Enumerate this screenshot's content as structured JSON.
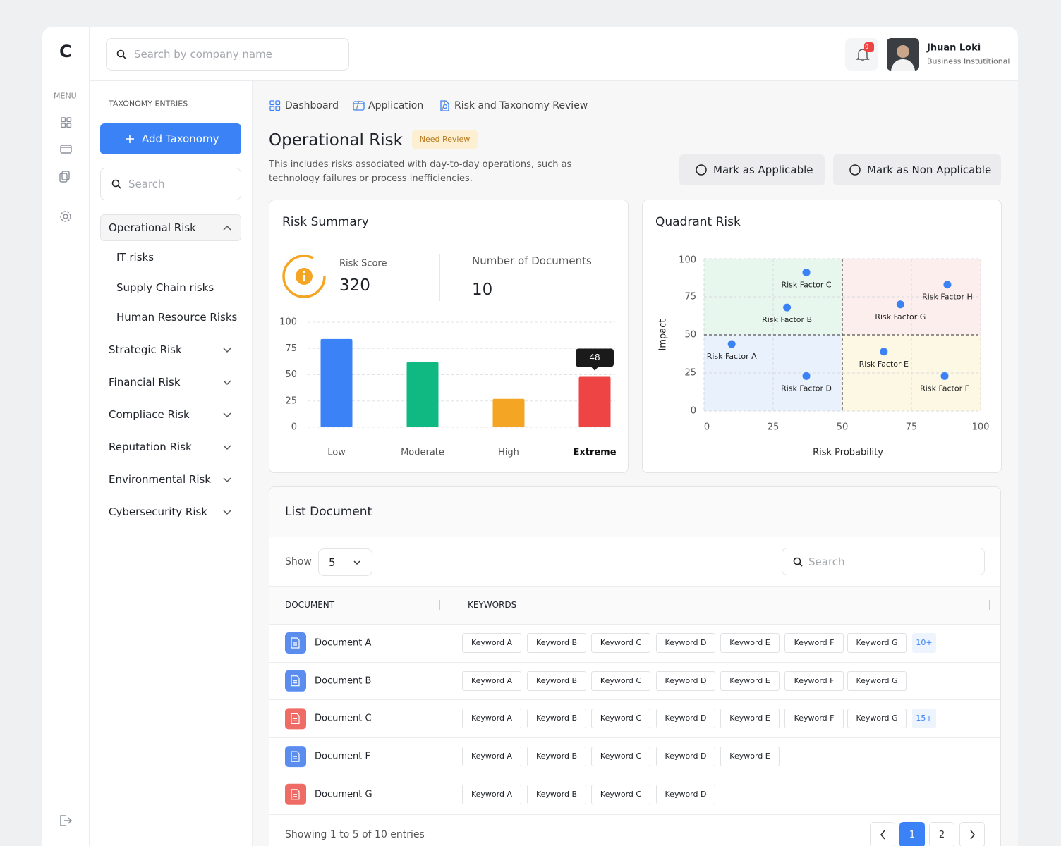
{
  "app": {
    "logo": "C",
    "menu_label": "MENU"
  },
  "topbar": {
    "search_placeholder": "Search by company name",
    "notification_count": "9+",
    "user_name": "Jhuan Loki",
    "user_role": "Business Instutitional"
  },
  "taxonomy": {
    "label": "TAXONOMY ENTRIES",
    "add_button": "Add Taxonomy",
    "search_placeholder": "Search",
    "items": [
      {
        "label": "Operational Risk",
        "children": [
          "IT risks",
          "Supply Chain risks",
          "Human Resource Risks"
        ]
      },
      {
        "label": "Strategic Risk"
      },
      {
        "label": "Financial Risk"
      },
      {
        "label": "Compliace Risk"
      },
      {
        "label": "Reputation Risk"
      },
      {
        "label": "Environmental Risk"
      },
      {
        "label": "Cybersecurity Risk"
      }
    ]
  },
  "breadcrumb": [
    "Dashboard",
    "Application",
    "Risk and Taxonomy Review"
  ],
  "header": {
    "title": "Operational Risk",
    "badge": "Need Review",
    "description": "This includes risks associated with day-to-day operations, such as technology failures or process inefficiencies.",
    "actions": [
      "Mark as Applicable",
      "Mark as Non Applicable"
    ]
  },
  "risk_summary": {
    "score_label": "Risk Score",
    "score": "320",
    "documents_label": "Number of Documents",
    "documents": "10"
  },
  "chart_data": [
    {
      "type": "bar",
      "title": "Risk Summary",
      "categories": [
        "Low",
        "Moderate",
        "High",
        "Extreme"
      ],
      "values": [
        84,
        62,
        27,
        48
      ],
      "colors": [
        "#3b82f6",
        "#10b981",
        "#f5a524",
        "#ef4444"
      ],
      "ylim": [
        0,
        100
      ],
      "yticks": [
        0,
        25,
        50,
        75,
        100
      ],
      "grid": true,
      "tooltip_index": 3
    },
    {
      "type": "scatter",
      "title": "Quadrant Risk",
      "xlabel": "Risk Probability",
      "ylabel": "Impact",
      "labels": [
        "Risk Factor A",
        "Risk Factor B",
        "Risk Factor C",
        "Risk Factor D",
        "Risk Factor E",
        "Risk Factor F",
        "Risk Factor G",
        "Risk Factor H"
      ],
      "x": [
        10,
        30,
        37,
        37,
        65,
        87,
        71,
        88
      ],
      "values": [
        44,
        68,
        91,
        23,
        39,
        23,
        70,
        83
      ],
      "color": "#3b82f6",
      "xlim": [
        0,
        100
      ],
      "ylim": [
        0,
        100
      ],
      "xticks": [
        0,
        25,
        50,
        75,
        100
      ],
      "yticks": [
        0,
        25,
        50,
        75,
        100
      ],
      "grid": true,
      "quadrant_split": [
        50,
        50
      ],
      "quadrant_colors": [
        "#e9f1fd",
        "#e7f7ee",
        "#fdeeee",
        "#fdf8e4"
      ]
    }
  ],
  "documents": {
    "title": "List Document",
    "show_label": "Show",
    "page_size": "5",
    "search_placeholder": "Search",
    "columns": [
      "DOCUMENT",
      "KEYWORDS"
    ],
    "rows": [
      {
        "name": "Document A",
        "icon": "#5b8def",
        "keywords": [
          "Keyword A",
          "Keyword B",
          "Keyword C",
          "Keyword D",
          "Keyword E",
          "Keyword F",
          "Keyword G"
        ],
        "more": "10+"
      },
      {
        "name": "Document B",
        "icon": "#5b8def",
        "keywords": [
          "Keyword A",
          "Keyword B",
          "Keyword C",
          "Keyword D",
          "Keyword E",
          "Keyword F",
          "Keyword G"
        ]
      },
      {
        "name": "Document C",
        "icon": "#ee6b66",
        "keywords": [
          "Keyword A",
          "Keyword B",
          "Keyword C",
          "Keyword D",
          "Keyword E",
          "Keyword F",
          "Keyword G"
        ],
        "more": "15+"
      },
      {
        "name": "Document F",
        "icon": "#5b8def",
        "keywords": [
          "Keyword A",
          "Keyword B",
          "Keyword C",
          "Keyword D",
          "Keyword E"
        ]
      },
      {
        "name": "Document G",
        "icon": "#ee6b66",
        "keywords": [
          "Keyword A",
          "Keyword B",
          "Keyword C",
          "Keyword D"
        ]
      }
    ],
    "footer": "Showing 1 to 5 of 10 entries",
    "pages": [
      "1",
      "2"
    ],
    "current_page": 0
  }
}
